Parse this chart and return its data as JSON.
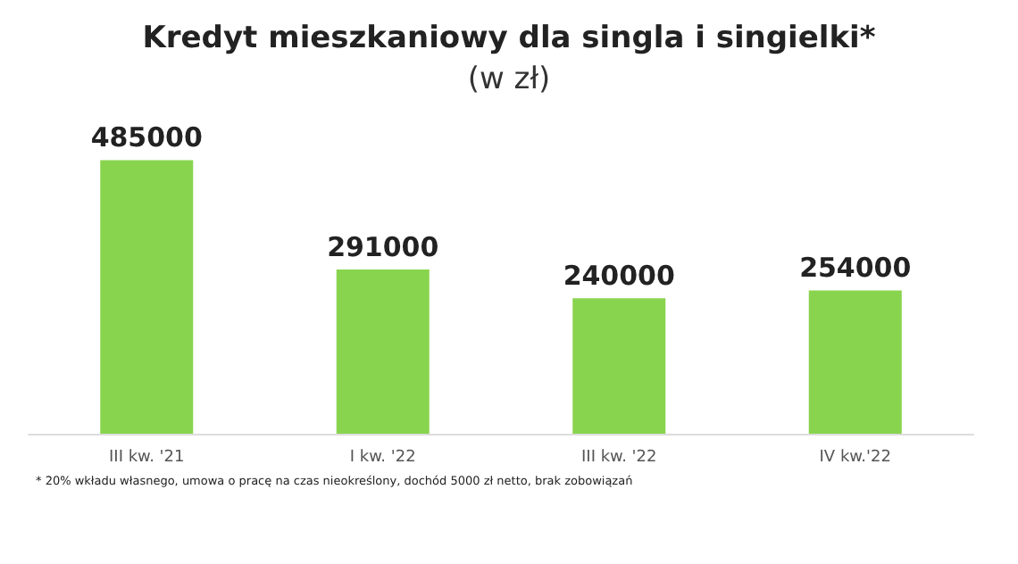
{
  "chart_data": {
    "type": "bar",
    "title": "Kredyt mieszkaniowy dla singla i singielki*",
    "subtitle": "(w zł)",
    "categories": [
      "III kw. '21",
      "I kw. '22",
      "III kw. '22",
      "IV kw.'22"
    ],
    "values": [
      485000,
      291000,
      240000,
      254000
    ],
    "color": "#88d44e",
    "data_labels": true,
    "annotations": [
      "* 20% wkładu własnego, umowa o pracę na czas nieokreślony, dochód 5000 zł netto, brak zobowiązań"
    ]
  }
}
